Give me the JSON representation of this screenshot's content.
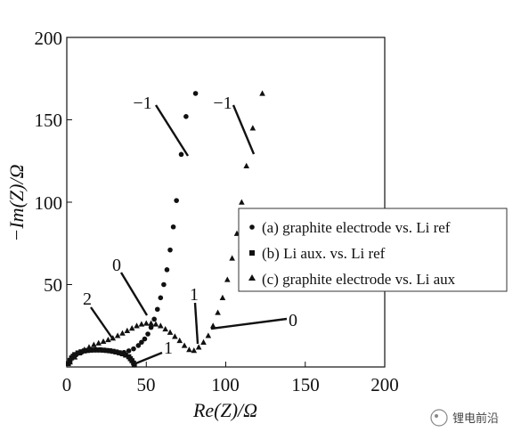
{
  "chart_data": {
    "type": "scatter",
    "title": "",
    "xlabel": "Re(Z)/Ω",
    "ylabel": "−Im(Z)/Ω",
    "xlim": [
      0,
      200
    ],
    "ylim": [
      0,
      200
    ],
    "x_ticks": [
      "0",
      "50",
      "100",
      "150",
      "200"
    ],
    "y_ticks": [
      "50",
      "100",
      "150",
      "200"
    ],
    "grid": false,
    "legend_position": "right",
    "series": [
      {
        "name": "(a) graphite electrode vs. Li ref",
        "marker": "circle",
        "points": [
          [
            1,
            2
          ],
          [
            2,
            4
          ],
          [
            4,
            6
          ],
          [
            6,
            7.5
          ],
          [
            9,
            9
          ],
          [
            12,
            10
          ],
          [
            15,
            10.5
          ],
          [
            18,
            10.6
          ],
          [
            21,
            10.5
          ],
          [
            24,
            10.2
          ],
          [
            27,
            9.8
          ],
          [
            30,
            9.2
          ],
          [
            33,
            8.6
          ],
          [
            36,
            8.8
          ],
          [
            39,
            9.8
          ],
          [
            42,
            11
          ],
          [
            45,
            13
          ],
          [
            47,
            15
          ],
          [
            49,
            17
          ],
          [
            51,
            20
          ],
          [
            53,
            24
          ],
          [
            55,
            29
          ],
          [
            57,
            35
          ],
          [
            59,
            42
          ],
          [
            61,
            50
          ],
          [
            63,
            59
          ],
          [
            65,
            71
          ],
          [
            67,
            85
          ],
          [
            69,
            101
          ],
          [
            72,
            129
          ],
          [
            75,
            152
          ],
          [
            81,
            166
          ]
        ]
      },
      {
        "name": "(b) Li aux. vs. Li ref",
        "marker": "square",
        "points": [
          [
            1,
            2
          ],
          [
            2,
            4
          ],
          [
            3,
            5.5
          ],
          [
            4,
            6.5
          ],
          [
            5,
            7.5
          ],
          [
            7,
            8.5
          ],
          [
            9,
            9.2
          ],
          [
            11,
            9.7
          ],
          [
            13,
            10
          ],
          [
            15,
            10.2
          ],
          [
            17,
            10.3
          ],
          [
            19,
            10.3
          ],
          [
            21,
            10.3
          ],
          [
            23,
            10.2
          ],
          [
            25,
            10
          ],
          [
            27,
            9.8
          ],
          [
            29,
            9.5
          ],
          [
            31,
            9.1
          ],
          [
            33,
            8.6
          ],
          [
            35,
            8
          ],
          [
            37,
            7.2
          ],
          [
            39,
            6.2
          ],
          [
            40,
            5
          ],
          [
            41,
            3.8
          ],
          [
            42,
            2.4
          ],
          [
            42.5,
            1.2
          ]
        ]
      },
      {
        "name": "(c) graphite electrode vs. Li aux",
        "marker": "triangle",
        "points": [
          [
            2,
            3
          ],
          [
            5,
            6
          ],
          [
            8,
            8.5
          ],
          [
            11,
            10.5
          ],
          [
            14,
            12
          ],
          [
            17,
            13.5
          ],
          [
            20,
            14.5
          ],
          [
            23,
            15.5
          ],
          [
            26,
            16.5
          ],
          [
            29,
            17.5
          ],
          [
            32,
            19
          ],
          [
            35,
            20.5
          ],
          [
            38,
            22
          ],
          [
            41,
            23.5
          ],
          [
            44,
            25
          ],
          [
            47,
            26
          ],
          [
            50,
            26.5
          ],
          [
            53,
            26.5
          ],
          [
            56,
            26
          ],
          [
            59,
            25
          ],
          [
            62,
            23
          ],
          [
            65,
            21
          ],
          [
            68,
            18.5
          ],
          [
            71,
            16
          ],
          [
            74,
            13
          ],
          [
            77,
            10.5
          ],
          [
            80,
            10
          ],
          [
            83,
            12
          ],
          [
            86,
            15
          ],
          [
            89,
            19
          ],
          [
            92,
            25
          ],
          [
            95,
            33
          ],
          [
            98,
            42
          ],
          [
            101,
            53
          ],
          [
            104,
            66
          ],
          [
            107,
            81
          ],
          [
            110,
            100
          ],
          [
            113,
            122
          ],
          [
            117,
            145
          ],
          [
            123,
            166
          ]
        ]
      }
    ],
    "annotations": [
      "−1",
      "−1",
      "0",
      "1",
      "0",
      "2",
      "1"
    ],
    "watermark": "锂电前沿"
  }
}
